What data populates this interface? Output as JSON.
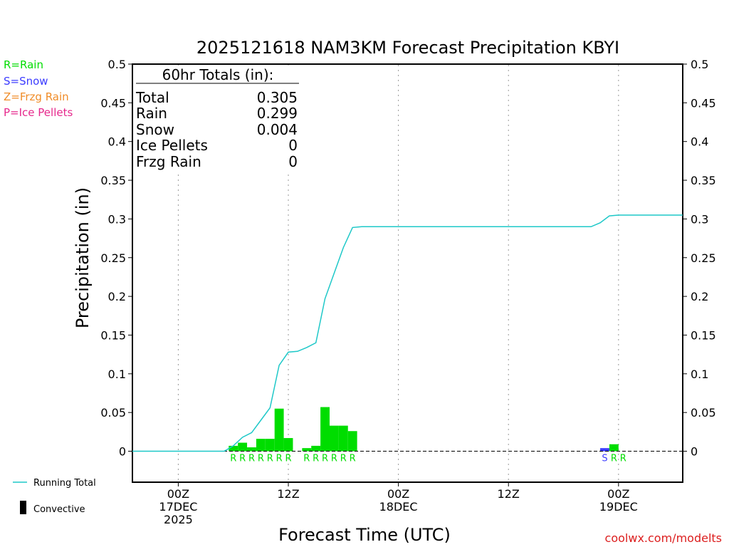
{
  "chart_data": {
    "type": "bar",
    "title": "2025121618 NAM3KM Forecast Precipitation KBYI",
    "xlabel": "Forecast Time (UTC)",
    "ylabel": "Precipitation (in)",
    "ylim": [
      -0.04,
      0.5
    ],
    "yticks": [
      0,
      0.05,
      0.1,
      0.15,
      0.2,
      0.25,
      0.3,
      0.35,
      0.4,
      0.45,
      0.5
    ],
    "ytick_labels": [
      "0",
      "0.05",
      "0.1",
      "0.15",
      "0.2",
      "0.25",
      "0.3",
      "0.35",
      "0.4",
      "0.45",
      "0.5"
    ],
    "xlim_hours": [
      -5,
      55
    ],
    "grid": "dotted vertical at 12-hour intervals",
    "x_ticks": [
      {
        "hour": 0,
        "line1": "00Z",
        "line2": "17DEC",
        "line3": "2025"
      },
      {
        "hour": 12,
        "line1": "12Z",
        "line2": "",
        "line3": ""
      },
      {
        "hour": 24,
        "line1": "00Z",
        "line2": "18DEC",
        "line3": ""
      },
      {
        "hour": 36,
        "line1": "12Z",
        "line2": "",
        "line3": ""
      },
      {
        "hour": 48,
        "line1": "00Z",
        "line2": "19DEC",
        "line3": ""
      }
    ],
    "bars": [
      {
        "start": 5.5,
        "end": 6.5,
        "value": 0.007,
        "type": "rain",
        "code": "R"
      },
      {
        "start": 6.5,
        "end": 7.5,
        "value": 0.011,
        "type": "rain",
        "code": "R"
      },
      {
        "start": 7.5,
        "end": 8.5,
        "value": 0.005,
        "type": "rain",
        "code": "R"
      },
      {
        "start": 8.5,
        "end": 9.5,
        "value": 0.016,
        "type": "rain",
        "code": "R"
      },
      {
        "start": 9.5,
        "end": 10.5,
        "value": 0.016,
        "type": "rain",
        "code": "R"
      },
      {
        "start": 10.5,
        "end": 11.5,
        "value": 0.055,
        "type": "rain",
        "code": "R"
      },
      {
        "start": 11.5,
        "end": 12.5,
        "value": 0.017,
        "type": "rain",
        "code": "R"
      },
      {
        "start": 13.5,
        "end": 14.5,
        "value": 0.004,
        "type": "rain",
        "code": "R"
      },
      {
        "start": 14.5,
        "end": 15.5,
        "value": 0.007,
        "type": "rain",
        "code": "R"
      },
      {
        "start": 15.5,
        "end": 16.5,
        "value": 0.057,
        "type": "rain",
        "code": "R"
      },
      {
        "start": 16.5,
        "end": 17.5,
        "value": 0.033,
        "type": "rain",
        "code": "R"
      },
      {
        "start": 17.5,
        "end": 18.5,
        "value": 0.033,
        "type": "rain",
        "code": "R"
      },
      {
        "start": 18.5,
        "end": 19.5,
        "value": 0.026,
        "type": "rain",
        "code": "R"
      },
      {
        "start": 46.0,
        "end": 47.0,
        "value": 0.004,
        "type": "snow",
        "code": "S"
      },
      {
        "start": 47.0,
        "end": 48.0,
        "value": 0.009,
        "type": "rain",
        "code": "R"
      }
    ],
    "code_labels": [
      {
        "hour": 6.0,
        "code": "R",
        "type": "rain"
      },
      {
        "hour": 7.0,
        "code": "R",
        "type": "rain"
      },
      {
        "hour": 8.0,
        "code": "R",
        "type": "rain"
      },
      {
        "hour": 9.0,
        "code": "R",
        "type": "rain"
      },
      {
        "hour": 10.0,
        "code": "R",
        "type": "rain"
      },
      {
        "hour": 11.0,
        "code": "R",
        "type": "rain"
      },
      {
        "hour": 12.0,
        "code": "R",
        "type": "rain"
      },
      {
        "hour": 14.0,
        "code": "R",
        "type": "rain"
      },
      {
        "hour": 15.0,
        "code": "R",
        "type": "rain"
      },
      {
        "hour": 16.0,
        "code": "R",
        "type": "rain"
      },
      {
        "hour": 17.0,
        "code": "R",
        "type": "rain"
      },
      {
        "hour": 18.0,
        "code": "R",
        "type": "rain"
      },
      {
        "hour": 19.0,
        "code": "R",
        "type": "rain"
      },
      {
        "hour": 46.5,
        "code": "S",
        "type": "snow"
      },
      {
        "hour": 47.5,
        "code": "R",
        "type": "rain"
      },
      {
        "hour": 48.5,
        "code": "R",
        "type": "rain"
      }
    ],
    "running_total": {
      "name": "Running Total",
      "x": [
        -5,
        5,
        5.3,
        6,
        7,
        8,
        9,
        10,
        11,
        12,
        13,
        14,
        15,
        16,
        17,
        18,
        19,
        20,
        21,
        44,
        45,
        46,
        47,
        48,
        49,
        55
      ],
      "y": [
        0,
        0,
        0.002,
        0.007,
        0.018,
        0.024,
        0.04,
        0.056,
        0.111,
        0.128,
        0.129,
        0.134,
        0.14,
        0.197,
        0.23,
        0.263,
        0.289,
        0.29,
        0.29,
        0.29,
        0.29,
        0.295,
        0.304,
        0.305,
        0.305,
        0.305
      ]
    },
    "totals_box": {
      "heading": "60hr Totals (in):",
      "rows": [
        {
          "label": "Total",
          "value": "0.305"
        },
        {
          "label": "Rain",
          "value": "0.299"
        },
        {
          "label": "Snow",
          "value": "0.004"
        },
        {
          "label": "Ice Pellets",
          "value": "0"
        },
        {
          "label": "Frzg Rain",
          "value": "0"
        }
      ]
    },
    "type_legend": [
      {
        "text": "R=Rain",
        "color": "#00dd00"
      },
      {
        "text": "S=Snow",
        "color": "#3c3cff"
      },
      {
        "text": "Z=Frzg Rain",
        "color": "#f08c28"
      },
      {
        "text": "P=Ice Pellets",
        "color": "#e6288c"
      }
    ],
    "series_legend": [
      {
        "text": "Running Total",
        "kind": "line",
        "color": "#1ec8c8"
      },
      {
        "text": "Convective",
        "kind": "bar",
        "color": "#000000"
      }
    ],
    "colors": {
      "rain": "#00dd00",
      "snow": "#3c3cff",
      "frzg_rain": "#f08c28",
      "ice_pellets": "#e6288c",
      "running_total": "#1ec8c8",
      "axis": "#000000",
      "grid": "#999999",
      "credit": "#dc1e1e"
    },
    "credit": "coolwx.com/modelts"
  }
}
